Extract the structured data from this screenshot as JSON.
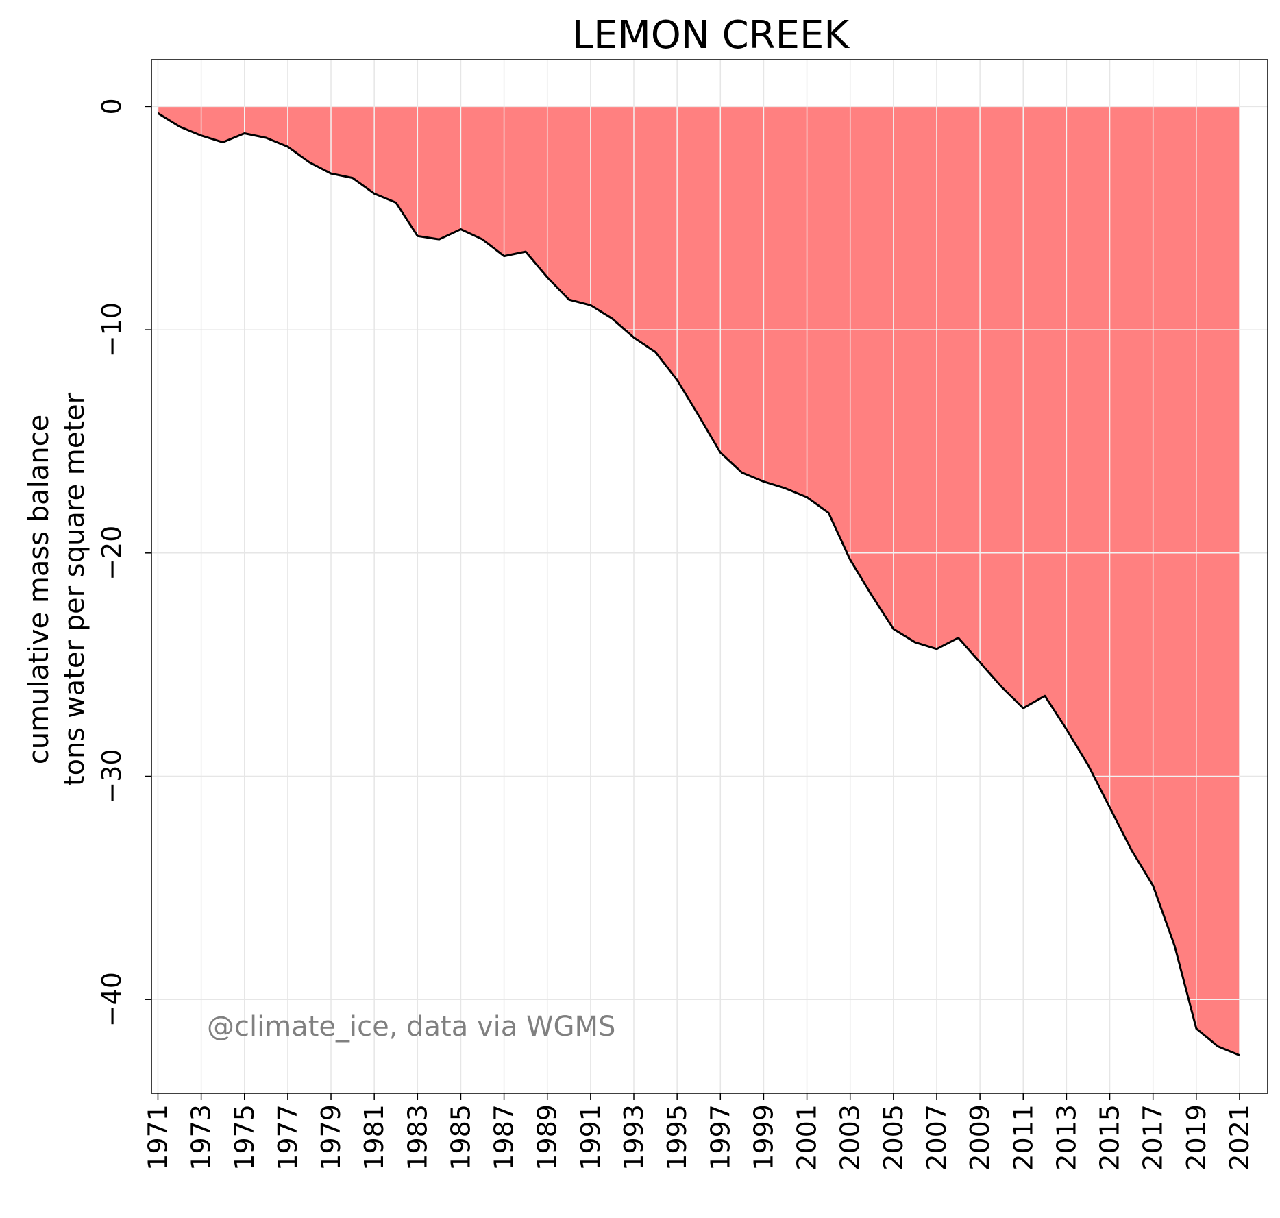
{
  "chart_data": {
    "type": "area",
    "title": "LEMON CREEK",
    "ylabel_lines": [
      "cumulative mass balance",
      "tons water per square meter"
    ],
    "xlabel": "",
    "annotation": "@climate_ice, data via WGMS",
    "x_range": [
      1970.7,
      2022.3
    ],
    "ylim": [
      -44.2,
      2.1
    ],
    "y_ticks": [
      0,
      -10,
      -20,
      -30,
      -40
    ],
    "y_tick_labels": [
      "0",
      "−10",
      "−20",
      "−30",
      "−40"
    ],
    "x_ticks": [
      1971,
      1973,
      1975,
      1977,
      1979,
      1981,
      1983,
      1985,
      1987,
      1989,
      1991,
      1993,
      1995,
      1997,
      1999,
      2001,
      2003,
      2005,
      2007,
      2009,
      2011,
      2013,
      2015,
      2017,
      2019,
      2021
    ],
    "x_tick_labels": [
      "1971",
      "1973",
      "1975",
      "1977",
      "1979",
      "1981",
      "1983",
      "1985",
      "1987",
      "1989",
      "1991",
      "1993",
      "1995",
      "1997",
      "1999",
      "2001",
      "2003",
      "2005",
      "2007",
      "2009",
      "2011",
      "2013",
      "2015",
      "2017",
      "2019",
      "2021"
    ],
    "grid": true,
    "colors": {
      "fill": "#ff8080",
      "line": "#000000",
      "grid": "#e6e6e6",
      "grid_on_fill": "#f2f2f2"
    },
    "x": [
      1971,
      1972,
      1973,
      1974,
      1975,
      1976,
      1977,
      1978,
      1979,
      1980,
      1981,
      1982,
      1983,
      1984,
      1985,
      1986,
      1987,
      1988,
      1989,
      1990,
      1991,
      1992,
      1993,
      1994,
      1995,
      1996,
      1997,
      1998,
      1999,
      2000,
      2001,
      2002,
      2003,
      2004,
      2005,
      2006,
      2007,
      2008,
      2009,
      2010,
      2011,
      2012,
      2013,
      2014,
      2015,
      2016,
      2017,
      2018,
      2019,
      2020,
      2021
    ],
    "values": [
      -0.3,
      -0.9,
      -1.3,
      -1.6,
      -1.2,
      -1.4,
      -1.8,
      -2.5,
      -3.0,
      -3.2,
      -3.9,
      -4.3,
      -5.8,
      -5.95,
      -5.5,
      -5.95,
      -6.7,
      -6.5,
      -7.65,
      -8.65,
      -8.9,
      -9.5,
      -10.35,
      -11.0,
      -12.25,
      -13.85,
      -15.5,
      -16.4,
      -16.8,
      -17.1,
      -17.5,
      -18.2,
      -20.3,
      -21.9,
      -23.4,
      -24.0,
      -24.3,
      -23.8,
      -24.9,
      -26.0,
      -26.95,
      -26.4,
      -27.9,
      -29.5,
      -31.4,
      -33.3,
      -34.9,
      -37.6,
      -41.3,
      -42.1,
      -42.5
    ]
  }
}
